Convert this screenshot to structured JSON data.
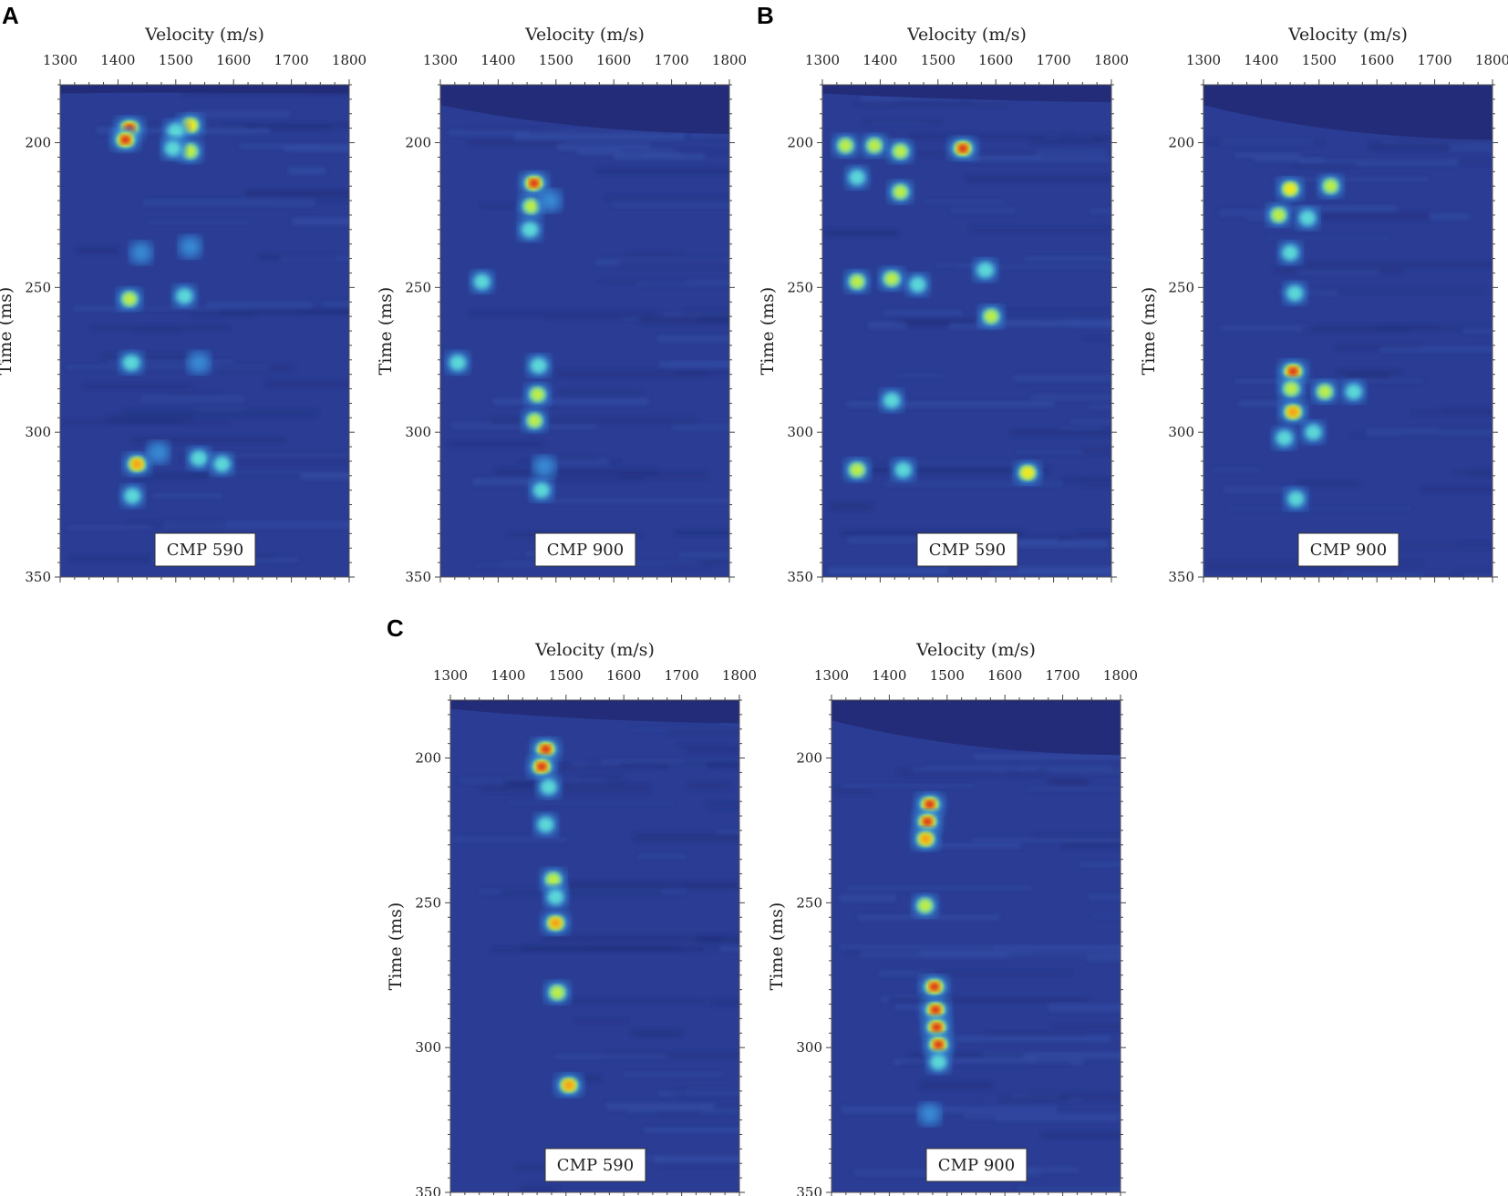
{
  "figure": {
    "panel_letters": [
      "A",
      "B",
      "C"
    ]
  },
  "colors": {
    "background": "#2a3c93",
    "top_mute": "#232c78",
    "colormap": [
      "#2a3c93",
      "#2f66c2",
      "#3fa7e6",
      "#60e0d8",
      "#c5ee3a",
      "#f7e61c",
      "#f39416",
      "#d01e1e"
    ]
  },
  "chart_data": [
    {
      "type": "heatmap",
      "panel": "A",
      "label": "CMP 590",
      "xlabel": "Velocity (m/s)",
      "ylabel": "Time (ms)",
      "x_ticks": [
        1300,
        1400,
        1500,
        1600,
        1700,
        1800
      ],
      "y_ticks": [
        200,
        250,
        300,
        350
      ],
      "xlim": [
        1300,
        1800
      ],
      "ylim": [
        180,
        350
      ],
      "mute_end": [
        183,
        183
      ],
      "peaks": [
        {
          "v": 1420,
          "t": 195,
          "a": 1.0
        },
        {
          "v": 1413,
          "t": 199,
          "a": 0.95
        },
        {
          "v": 1525,
          "t": 194,
          "a": 0.75
        },
        {
          "v": 1500,
          "t": 196,
          "a": 0.45
        },
        {
          "v": 1525,
          "t": 203,
          "a": 0.5
        },
        {
          "v": 1495,
          "t": 202,
          "a": 0.35
        },
        {
          "v": 1420,
          "t": 254,
          "a": 0.55
        },
        {
          "v": 1515,
          "t": 253,
          "a": 0.4
        },
        {
          "v": 1440,
          "t": 238,
          "a": 0.3
        },
        {
          "v": 1525,
          "t": 236,
          "a": 0.3
        },
        {
          "v": 1423,
          "t": 276,
          "a": 0.48
        },
        {
          "v": 1540,
          "t": 276,
          "a": 0.3
        },
        {
          "v": 1433,
          "t": 311,
          "a": 0.8
        },
        {
          "v": 1470,
          "t": 307,
          "a": 0.3
        },
        {
          "v": 1540,
          "t": 309,
          "a": 0.45
        },
        {
          "v": 1580,
          "t": 311,
          "a": 0.35
        },
        {
          "v": 1425,
          "t": 322,
          "a": 0.35
        }
      ]
    },
    {
      "type": "heatmap",
      "panel": "A",
      "label": "CMP 900",
      "xlabel": "Velocity (m/s)",
      "ylabel": "Time (ms)",
      "x_ticks": [
        1300,
        1400,
        1500,
        1600,
        1700,
        1800
      ],
      "y_ticks": [
        200,
        250,
        300,
        350
      ],
      "xlim": [
        1300,
        1800
      ],
      "ylim": [
        180,
        350
      ],
      "mute_end": [
        187,
        197
      ],
      "peaks": [
        {
          "v": 1462,
          "t": 214,
          "a": 0.95
        },
        {
          "v": 1457,
          "t": 222,
          "a": 0.55
        },
        {
          "v": 1455,
          "t": 230,
          "a": 0.45
        },
        {
          "v": 1490,
          "t": 220,
          "a": 0.3
        },
        {
          "v": 1372,
          "t": 248,
          "a": 0.35
        },
        {
          "v": 1330,
          "t": 276,
          "a": 0.4
        },
        {
          "v": 1470,
          "t": 277,
          "a": 0.45
        },
        {
          "v": 1468,
          "t": 287,
          "a": 0.55
        },
        {
          "v": 1463,
          "t": 296,
          "a": 0.5
        },
        {
          "v": 1480,
          "t": 312,
          "a": 0.3
        },
        {
          "v": 1475,
          "t": 320,
          "a": 0.4
        }
      ]
    },
    {
      "type": "heatmap",
      "panel": "B",
      "label": "CMP 590",
      "xlabel": "Velocity (m/s)",
      "ylabel": "Time (ms)",
      "x_ticks": [
        1300,
        1400,
        1500,
        1600,
        1700,
        1800
      ],
      "y_ticks": [
        200,
        250,
        300,
        350
      ],
      "xlim": [
        1300,
        1800
      ],
      "ylim": [
        180,
        350
      ],
      "mute_end": [
        183,
        186
      ],
      "peaks": [
        {
          "v": 1543,
          "t": 202,
          "a": 0.95
        },
        {
          "v": 1340,
          "t": 201,
          "a": 0.5
        },
        {
          "v": 1390,
          "t": 201,
          "a": 0.5
        },
        {
          "v": 1435,
          "t": 203,
          "a": 0.55
        },
        {
          "v": 1360,
          "t": 212,
          "a": 0.35
        },
        {
          "v": 1435,
          "t": 217,
          "a": 0.5
        },
        {
          "v": 1360,
          "t": 248,
          "a": 0.5
        },
        {
          "v": 1420,
          "t": 247,
          "a": 0.6
        },
        {
          "v": 1465,
          "t": 249,
          "a": 0.35
        },
        {
          "v": 1582,
          "t": 244,
          "a": 0.45
        },
        {
          "v": 1592,
          "t": 260,
          "a": 0.55
        },
        {
          "v": 1420,
          "t": 289,
          "a": 0.4
        },
        {
          "v": 1360,
          "t": 313,
          "a": 0.6
        },
        {
          "v": 1440,
          "t": 313,
          "a": 0.4
        },
        {
          "v": 1655,
          "t": 314,
          "a": 0.7
        }
      ]
    },
    {
      "type": "heatmap",
      "panel": "B",
      "label": "CMP 900",
      "xlabel": "Velocity (m/s)",
      "ylabel": "Time (ms)",
      "x_ticks": [
        1300,
        1400,
        1500,
        1600,
        1700,
        1800
      ],
      "y_ticks": [
        200,
        250,
        300,
        350
      ],
      "xlim": [
        1300,
        1800
      ],
      "ylim": [
        180,
        350
      ],
      "mute_end": [
        187,
        199
      ],
      "peaks": [
        {
          "v": 1450,
          "t": 216,
          "a": 0.65
        },
        {
          "v": 1520,
          "t": 215,
          "a": 0.5
        },
        {
          "v": 1430,
          "t": 225,
          "a": 0.5
        },
        {
          "v": 1480,
          "t": 226,
          "a": 0.4
        },
        {
          "v": 1450,
          "t": 238,
          "a": 0.35
        },
        {
          "v": 1458,
          "t": 252,
          "a": 0.35
        },
        {
          "v": 1455,
          "t": 279,
          "a": 1.0
        },
        {
          "v": 1452,
          "t": 285,
          "a": 0.6
        },
        {
          "v": 1455,
          "t": 293,
          "a": 0.85
        },
        {
          "v": 1510,
          "t": 286,
          "a": 0.55
        },
        {
          "v": 1560,
          "t": 286,
          "a": 0.35
        },
        {
          "v": 1440,
          "t": 302,
          "a": 0.4
        },
        {
          "v": 1490,
          "t": 300,
          "a": 0.35
        },
        {
          "v": 1460,
          "t": 323,
          "a": 0.35
        }
      ]
    },
    {
      "type": "heatmap",
      "panel": "C",
      "label": "CMP 590",
      "xlabel": "Velocity (m/s)",
      "ylabel": "Time (ms)",
      "x_ticks": [
        1300,
        1400,
        1500,
        1600,
        1700,
        1800
      ],
      "y_ticks": [
        200,
        250,
        300,
        350
      ],
      "xlim": [
        1300,
        1800
      ],
      "ylim": [
        180,
        350
      ],
      "mute_end": [
        183,
        188
      ],
      "peaks": [
        {
          "v": 1465,
          "t": 197,
          "a": 1.0
        },
        {
          "v": 1458,
          "t": 203,
          "a": 0.95
        },
        {
          "v": 1470,
          "t": 210,
          "a": 0.4
        },
        {
          "v": 1465,
          "t": 223,
          "a": 0.35
        },
        {
          "v": 1478,
          "t": 242,
          "a": 0.55
        },
        {
          "v": 1482,
          "t": 248,
          "a": 0.4
        },
        {
          "v": 1482,
          "t": 257,
          "a": 0.85
        },
        {
          "v": 1485,
          "t": 281,
          "a": 0.6
        },
        {
          "v": 1505,
          "t": 313,
          "a": 0.85
        }
      ]
    },
    {
      "type": "heatmap",
      "panel": "C",
      "label": "CMP 900",
      "xlabel": "Velocity (m/s)",
      "ylabel": "Time (ms)",
      "x_ticks": [
        1300,
        1400,
        1500,
        1600,
        1700,
        1800
      ],
      "y_ticks": [
        200,
        250,
        300,
        350
      ],
      "xlim": [
        1300,
        1800
      ],
      "ylim": [
        180,
        350
      ],
      "mute_end": [
        187,
        199
      ],
      "peaks": [
        {
          "v": 1470,
          "t": 216,
          "a": 1.0
        },
        {
          "v": 1466,
          "t": 222,
          "a": 0.95
        },
        {
          "v": 1463,
          "t": 228,
          "a": 0.8
        },
        {
          "v": 1462,
          "t": 251,
          "a": 0.55
        },
        {
          "v": 1478,
          "t": 279,
          "a": 1.0
        },
        {
          "v": 1480,
          "t": 287,
          "a": 1.0
        },
        {
          "v": 1482,
          "t": 293,
          "a": 1.0
        },
        {
          "v": 1485,
          "t": 299,
          "a": 0.95
        },
        {
          "v": 1485,
          "t": 305,
          "a": 0.4
        },
        {
          "v": 1470,
          "t": 323,
          "a": 0.3
        }
      ]
    }
  ]
}
